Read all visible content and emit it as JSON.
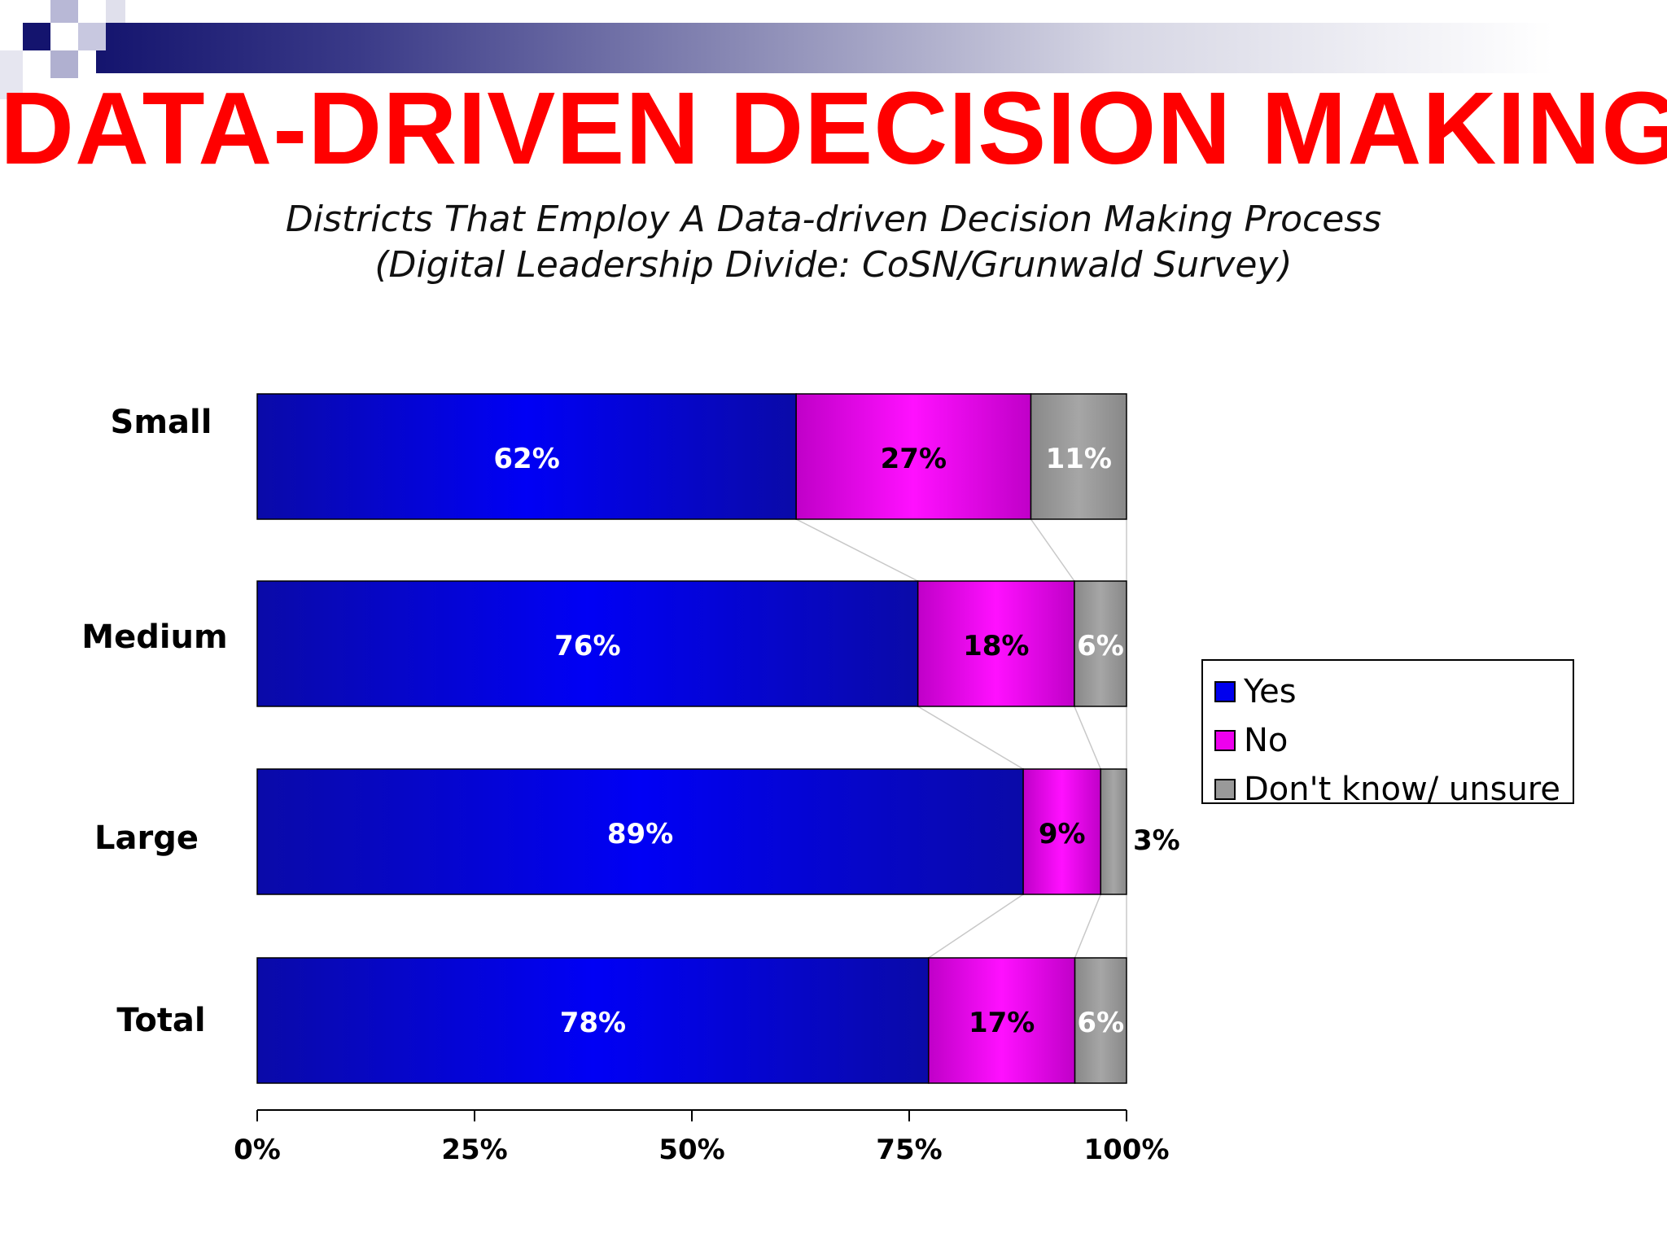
{
  "slide": {
    "title": "DATA-DRIVEN DECISION MAKING",
    "subtitle_line1": "Districts That  Employ A Data-driven Decision Making Process",
    "subtitle_line2": "(Digital Leadership Divide: CoSN/Grunwald Survey)"
  },
  "colors": {
    "title": "#ff0000",
    "yes": "#0000ee",
    "no": "#ee00ee",
    "unsure": "#999999",
    "header_dark": "#14146e"
  },
  "chart_data": {
    "type": "bar",
    "orientation": "horizontal",
    "stacked": true,
    "categories": [
      "Small",
      "Medium",
      "Large",
      "Total"
    ],
    "series": [
      {
        "name": "Yes",
        "color": "#0000ee",
        "values": [
          62,
          76,
          89,
          78
        ],
        "labels": [
          "62%",
          "76%",
          "89%",
          "78%"
        ]
      },
      {
        "name": "No",
        "color": "#ee00ee",
        "values": [
          27,
          18,
          9,
          17
        ],
        "labels": [
          "27%",
          "18%",
          "9%",
          "17%"
        ]
      },
      {
        "name": "Don't know/ unsure",
        "color": "#999999",
        "values": [
          11,
          6,
          3,
          6
        ],
        "labels": [
          "11%",
          "6%",
          "3%",
          "6%"
        ]
      }
    ],
    "xlim": [
      0,
      100
    ],
    "xticks": [
      "0%",
      "25%",
      "50%",
      "75%",
      "100%"
    ],
    "legend": "right"
  }
}
